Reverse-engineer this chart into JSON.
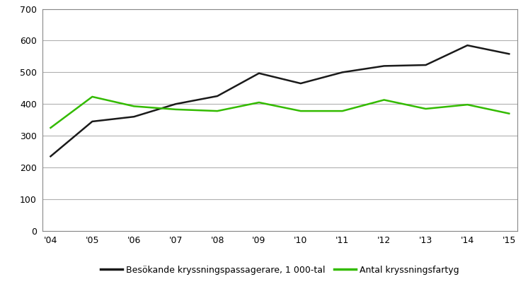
{
  "years": [
    "'04",
    "'05",
    "'06",
    "'07",
    "'08",
    "'09",
    "'10",
    "'11",
    "'12",
    "'13",
    "'14",
    "'15"
  ],
  "passengers": [
    235,
    345,
    360,
    400,
    425,
    497,
    465,
    500,
    520,
    523,
    585,
    558
  ],
  "ships": [
    325,
    423,
    393,
    383,
    378,
    405,
    378,
    378,
    413,
    385,
    398,
    370
  ],
  "passenger_color": "#1a1a1a",
  "ship_color": "#33bb00",
  "passenger_label": "Besökande kryssningspassagerare, 1 000-tal",
  "ship_label": "Antal kryssningsfartyg",
  "ylim": [
    0,
    700
  ],
  "yticks": [
    0,
    100,
    200,
    300,
    400,
    500,
    600,
    700
  ],
  "grid_color": "#b0b0b0",
  "background_color": "#ffffff",
  "line_width": 1.8,
  "font_size_ticks": 9,
  "font_size_legend": 9
}
